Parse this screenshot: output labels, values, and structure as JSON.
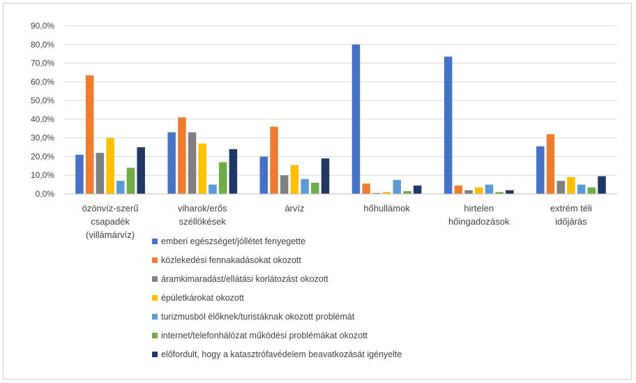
{
  "chart_data": {
    "type": "bar",
    "title": "",
    "xlabel": "",
    "ylabel": "",
    "ylim": [
      0,
      90
    ],
    "y_tick_labels": [
      "0,0%",
      "10,0%",
      "20,0%",
      "30,0%",
      "40,0%",
      "50,0%",
      "60,0%",
      "70,0%",
      "80,0%",
      "90,0%"
    ],
    "grid": true,
    "legend_position": "bottom",
    "categories": [
      [
        "özönvíz-szerű",
        "csapadék",
        "(villámárvíz)"
      ],
      [
        "viharok/erős",
        "széllökések"
      ],
      [
        "árvíz"
      ],
      [
        "hőhullámok"
      ],
      [
        "hirtelen",
        "hőingadozások"
      ],
      [
        "extrém téli",
        "időjárás"
      ]
    ],
    "series": [
      {
        "name": "emberi egészséget/jóllétet fenyegette",
        "color": "#4472C4",
        "values": [
          21,
          33,
          20,
          80,
          73.5,
          25.5
        ]
      },
      {
        "name": "közlekedési fennakadásokat okozott",
        "color": "#ED7D31",
        "values": [
          63.5,
          41,
          36,
          5.5,
          4.5,
          32
        ]
      },
      {
        "name": "áramkimaradást/ellátási korlátozást okozott",
        "color": "#808080",
        "values": [
          22,
          33,
          10,
          0.5,
          2,
          7
        ]
      },
      {
        "name": "épületkárokat okozott",
        "color": "#FFC000",
        "values": [
          30,
          27,
          15.5,
          1,
          3.5,
          9
        ]
      },
      {
        "name": "turizmusból élőknek/turistáknak okozott problémát",
        "color": "#5B9BD5",
        "values": [
          7,
          5,
          8,
          7.5,
          5,
          5
        ]
      },
      {
        "name": "internet/telefonhálózat működési problémákat okozott",
        "color": "#70AD47",
        "values": [
          14,
          17,
          6,
          1.5,
          1,
          3.5
        ]
      },
      {
        "name": "előfordult, hogy a katasztrófavédelem beavatkozását igényelte",
        "color": "#203864",
        "values": [
          25,
          24,
          19,
          4.5,
          2,
          9.5
        ]
      }
    ]
  }
}
